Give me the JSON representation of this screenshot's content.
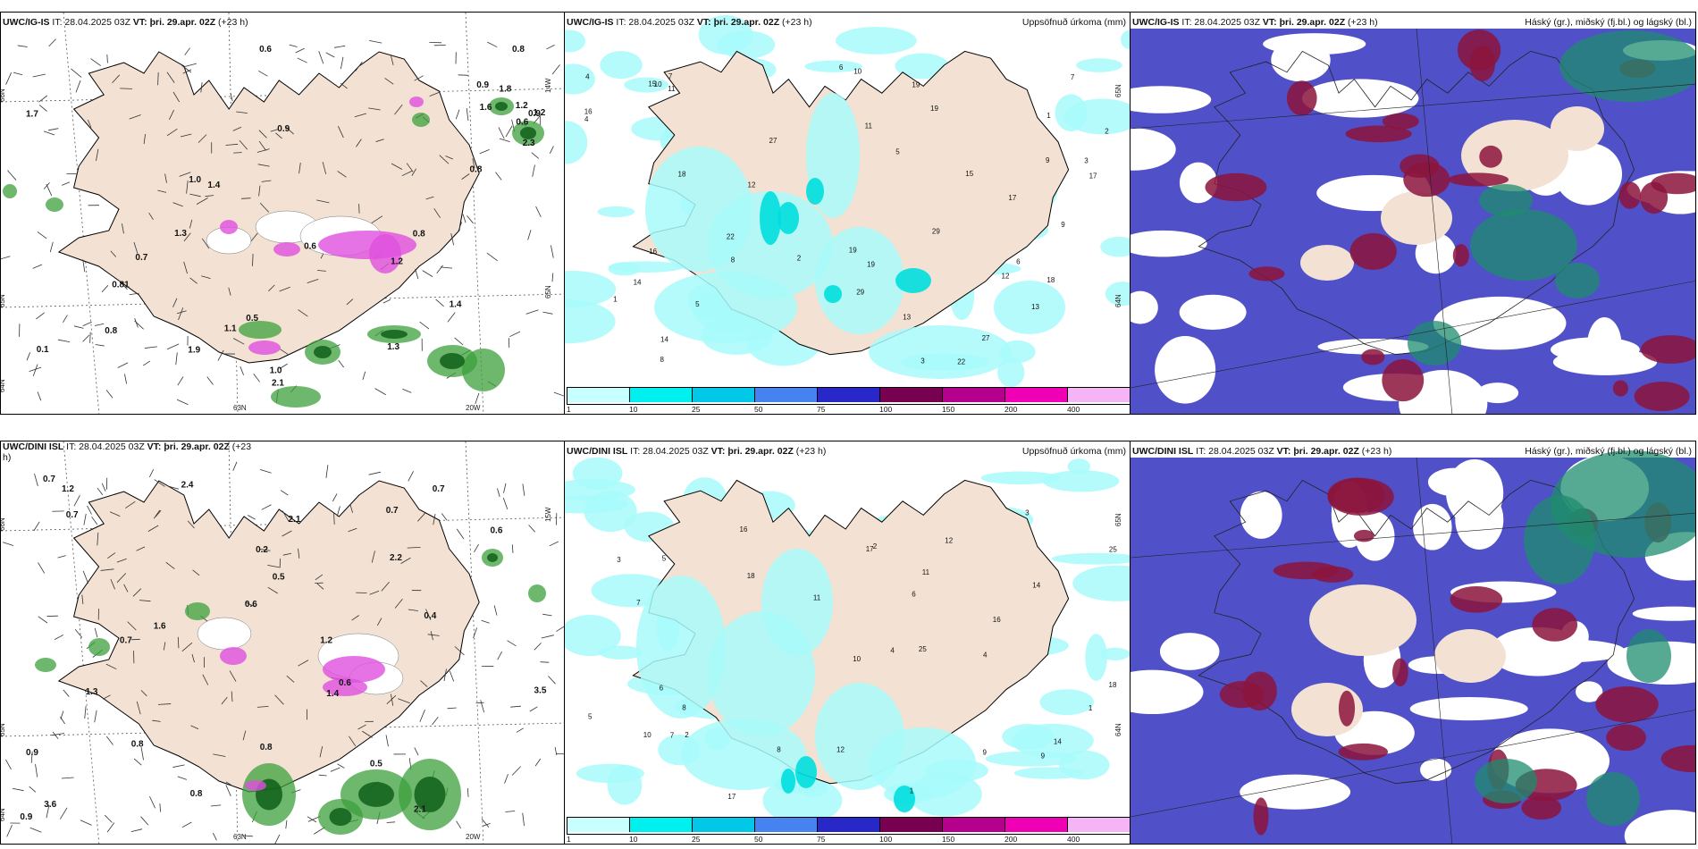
{
  "panels": [
    {
      "id": "ig-is-precip-type",
      "model": "UWC/IG-IS",
      "it_label": " IT: ",
      "it": "28.04.2025 03Z",
      "vt_label": " VT: ",
      "vt": "þri. 29.apr. 02Z",
      "lead": " (+23 h)",
      "right_title": "",
      "axis_labels": [
        "66N",
        "65N",
        "64N",
        "63N",
        "20W",
        "14W",
        "65N"
      ],
      "values": [
        "0.8",
        "1.9",
        "2.1",
        "1.2",
        "1.3",
        "1.4",
        "0.1",
        "1.3",
        "1.2",
        "0.5",
        "1.6",
        "1.0",
        "0.9",
        "0.8",
        "0.6",
        "0.6",
        "0.9",
        "1.2",
        "1.8",
        "1.4",
        "1.1",
        "0.6",
        "0.8",
        "1.7",
        "0.9",
        "2.3",
        "0.81",
        "1.0",
        "0.8",
        "0.7"
      ]
    },
    {
      "id": "ig-is-accum",
      "model": "UWC/IG-IS",
      "it_label": " IT: ",
      "it": "28.04.2025 03Z",
      "vt_label": " VT: ",
      "vt": "þri. 29.apr. 02Z",
      "lead": " (+23 h)",
      "right_title": "Uppsöfnuð úrkoma (mm)",
      "axis_labels": [
        "65N",
        "64N"
      ],
      "values": [
        "7",
        "5",
        "10",
        "13",
        "17",
        "19",
        "14",
        "11",
        "6",
        "16",
        "19",
        "12",
        "9",
        "29",
        "27",
        "15",
        "18",
        "22",
        "4",
        "3",
        "2",
        "1",
        "8"
      ]
    },
    {
      "id": "ig-is-cloud",
      "model": "UWC/IG-IS",
      "it_label": " IT: ",
      "it": "28.04.2025 03Z",
      "vt_label": " VT: ",
      "vt": "þri. 29.apr. 02Z",
      "lead": " (+23 h)",
      "right_title": "Háský (gr.), miðský (fj.bl.) og lágský (bl.)",
      "axis_labels": [],
      "values": []
    },
    {
      "id": "dini-precip-type",
      "model": "UWC/DINI ISL",
      "it_label": " IT: ",
      "it": "28.04.2025 03Z",
      "vt_label": " VT: ",
      "vt": "þri. 29.apr. 02Z",
      "lead": " (+23",
      "lead2": "h)",
      "right_title": "",
      "axis_labels": [
        "66N",
        "65N",
        "64N",
        "63N",
        "20W",
        "15W"
      ],
      "values": [
        "0.7",
        "0.7",
        "0.6",
        "0.6",
        "1.4",
        "0.7",
        "0.5",
        "1.2",
        "0.4",
        "0.6",
        "0.9",
        "0.9",
        "2.1",
        "0.7",
        "1.3",
        "1.6",
        "0.5",
        "0.2",
        "3.5",
        "0.8",
        "0.8",
        "0.7",
        "2.2",
        "1.2",
        "2.1",
        "2.4",
        "3.6",
        "0.8"
      ]
    },
    {
      "id": "dini-accum",
      "model": "UWC/DINI ISL",
      "it_label": " IT: ",
      "it": "28.04.2025 03Z",
      "vt_label": " VT: ",
      "vt": "þri. 29.apr. 02Z",
      "lead": " (+23 h)",
      "right_title": "Uppsöfnuð úrkoma (mm)",
      "axis_labels": [
        "65N",
        "64N"
      ],
      "values": [
        "3",
        "5",
        "9",
        "8",
        "10",
        "11",
        "18",
        "14",
        "16",
        "17",
        "12",
        "7",
        "2",
        "1",
        "4",
        "6",
        "25"
      ]
    },
    {
      "id": "dini-cloud",
      "model": "UWC/DINI ISL",
      "it_label": " IT: ",
      "it": "28.04.2025 03Z",
      "vt_label": " VT: ",
      "vt": "þri. 29.apr. 02Z",
      "lead": " (+23 h)",
      "right_title": "Háský (gr.), miðský (fj.bl.) og lágský (bl.)",
      "axis_labels": [],
      "values": []
    }
  ],
  "colorbar": {
    "ticks": [
      "1",
      "10",
      "25",
      "50",
      "75",
      "100",
      "150",
      "200",
      "400"
    ],
    "colors": [
      "#c8ffff",
      "#00f0f0",
      "#00c8e6",
      "#4682f0",
      "#2828c8",
      "#780050",
      "#b4008c",
      "#f000b4",
      "#f5b4f5"
    ]
  },
  "colors": {
    "land": "#f3e2d3",
    "coast": "#000000",
    "snow_pink": "#e050e0",
    "rain_green": "#3ca03c",
    "low_cloud": "#5050c8",
    "mid_cloud": "#8c143c",
    "high_cloud": "#1e8c6e"
  }
}
